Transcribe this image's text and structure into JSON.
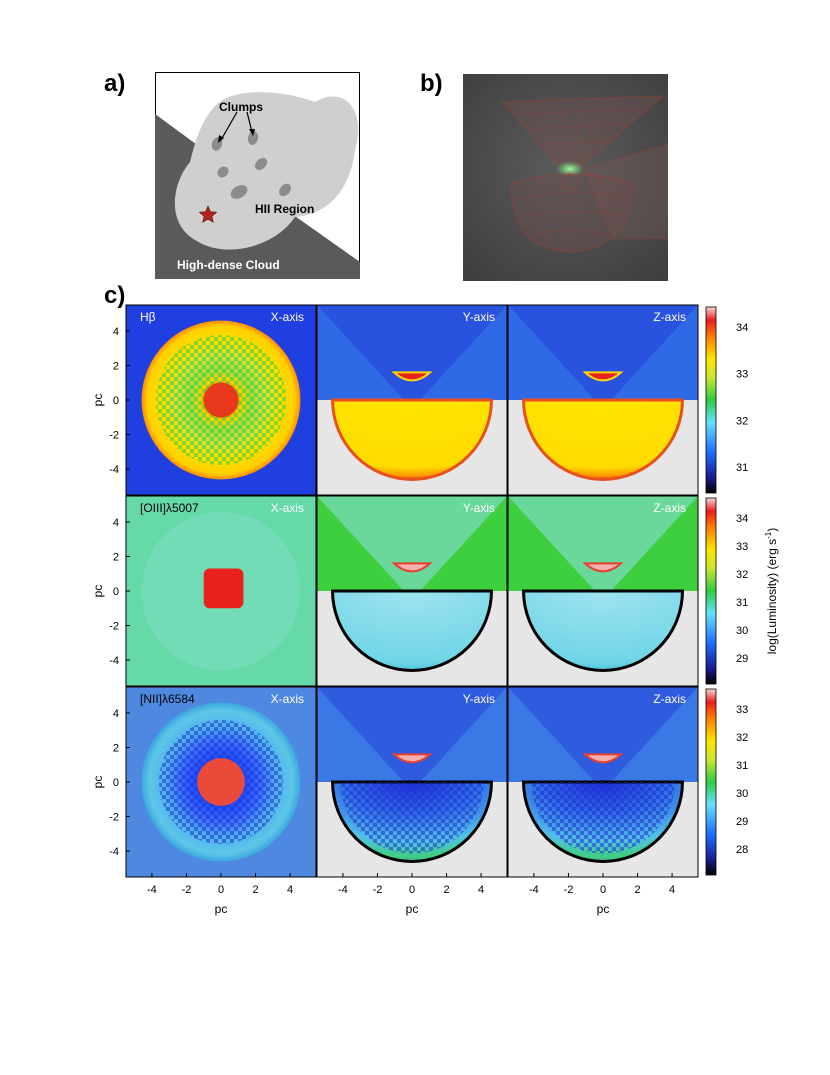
{
  "panel_labels": {
    "a": "a)",
    "b": "b)",
    "c": "c)"
  },
  "panel_a": {
    "clumps_label": "Clumps",
    "hii_label": "HII Region",
    "cloud_label": "High-dense Cloud",
    "colors": {
      "cloud": "#5a5a5a",
      "hii": "#cfcfcf",
      "clump": "#8c8c8c",
      "star": "#b22222"
    }
  },
  "panel_b": {
    "colors": {
      "background": "#4a4a4a",
      "wire": "#c0392b",
      "glow": "#5bdc6a"
    }
  },
  "panel_c": {
    "rows": [
      {
        "line": "Hβ",
        "cbar_ticks": [
          "34",
          "33",
          "32",
          "31"
        ]
      },
      {
        "line": "[OIII]λ5007",
        "cbar_ticks": [
          "34",
          "33",
          "32",
          "31",
          "30",
          "29"
        ]
      },
      {
        "line": "[NII]λ6584",
        "cbar_ticks": [
          "33",
          "32",
          "31",
          "30",
          "29",
          "28"
        ]
      }
    ],
    "columns": [
      "X-axis",
      "Y-axis",
      "Z-axis"
    ],
    "ticks": [
      "-4",
      "-2",
      "0",
      "2",
      "4"
    ],
    "xlabel": "pc",
    "ylabel": "pc",
    "cbar_label": "log(Luminosity) (erg s",
    "cbar_label_sup": "-1",
    "cbar_label_end": ")"
  }
}
